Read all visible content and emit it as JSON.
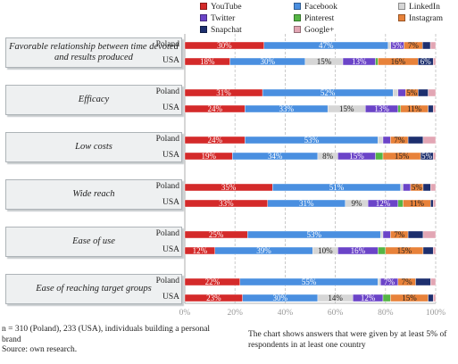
{
  "legend": [
    {
      "name": "YouTube",
      "color": "#d42a2a"
    },
    {
      "name": "Facebook",
      "color": "#4a8fe0"
    },
    {
      "name": "LinkedIn",
      "color": "#d6d6d6"
    },
    {
      "name": "Twitter",
      "color": "#6b44c8"
    },
    {
      "name": "Pinterest",
      "color": "#55b545"
    },
    {
      "name": "Instagram",
      "color": "#e8823a"
    },
    {
      "name": "Snapchat",
      "color": "#1d2f6e"
    },
    {
      "name": "Google+",
      "color": "#e2a6b4"
    }
  ],
  "chart_data": {
    "type": "bar",
    "orientation": "horizontal",
    "stacked": "percent",
    "xlim": [
      0,
      100
    ],
    "x_ticks": [
      "0%",
      "20%",
      "40%",
      "60%",
      "80%",
      "100%"
    ],
    "grid": "vertical dashed",
    "legend_position": "top-right",
    "groups": [
      {
        "category": "Favorable relationship between time devoted and results produced",
        "rows": [
          {
            "country": "Poland",
            "values": [
              30,
              47,
              1,
              5,
              0,
              7,
              3,
              2
            ]
          },
          {
            "country": "USA",
            "values": [
              18,
              30,
              15,
              13,
              1,
              16,
              6,
              1
            ]
          }
        ]
      },
      {
        "category": "Efficacy",
        "rows": [
          {
            "country": "Poland",
            "values": [
              31,
              52,
              2,
              3,
              0,
              5,
              4,
              3
            ]
          },
          {
            "country": "USA",
            "values": [
              24,
              33,
              15,
              13,
              1,
              11,
              2,
              1
            ]
          }
        ]
      },
      {
        "category": "Low costs",
        "rows": [
          {
            "country": "Poland",
            "values": [
              24,
              53,
              2,
              3,
              0,
              7,
              6,
              5
            ]
          },
          {
            "country": "USA",
            "values": [
              19,
              34,
              8,
              15,
              3,
              15,
              5,
              1
            ]
          }
        ]
      },
      {
        "category": "Wide reach",
        "rows": [
          {
            "country": "Poland",
            "values": [
              35,
              51,
              1,
              3,
              0,
              5,
              3,
              2
            ]
          },
          {
            "country": "USA",
            "values": [
              33,
              31,
              9,
              12,
              2,
              11,
              1,
              1
            ]
          }
        ]
      },
      {
        "category": "Ease of use",
        "rows": [
          {
            "country": "Poland",
            "values": [
              25,
              53,
              1,
              3,
              0,
              7,
              6,
              5
            ]
          },
          {
            "country": "USA",
            "values": [
              12,
              39,
              10,
              16,
              3,
              15,
              4,
              1
            ]
          }
        ]
      },
      {
        "category": "Ease of reaching target groups",
        "rows": [
          {
            "country": "Poland",
            "values": [
              22,
              55,
              1,
              7,
              0,
              7,
              6,
              2
            ]
          },
          {
            "country": "USA",
            "values": [
              23,
              30,
              14,
              12,
              3,
              15,
              2,
              1
            ]
          }
        ]
      }
    ],
    "labels": {
      "0-0": [
        "30%",
        "47%",
        "",
        "5%",
        "",
        "7%",
        "",
        ""
      ],
      "0-1": [
        "18%",
        "30%",
        "15%",
        "13%",
        "",
        "16%",
        "6%",
        ""
      ],
      "1-0": [
        "31%",
        "52%",
        "",
        "",
        "",
        "5%",
        "",
        ""
      ],
      "1-1": [
        "24%",
        "33%",
        "15%",
        "13%",
        "",
        "11%",
        "",
        ""
      ],
      "2-0": [
        "24%",
        "53%",
        "",
        "",
        "",
        "7%",
        "",
        ""
      ],
      "2-1": [
        "19%",
        "34%",
        "8%",
        "15%",
        "",
        "15%",
        "5%",
        ""
      ],
      "3-0": [
        "35%",
        "51%",
        "",
        "",
        "",
        "5%",
        "",
        ""
      ],
      "3-1": [
        "33%",
        "31%",
        "9%",
        "12%",
        "",
        "11%",
        "",
        ""
      ],
      "4-0": [
        "25%",
        "53%",
        "",
        "",
        "",
        "7%",
        "",
        ""
      ],
      "4-1": [
        "12%",
        "39%",
        "10%",
        "16%",
        "",
        "15%",
        "",
        ""
      ],
      "5-0": [
        "22%",
        "55%",
        "",
        "7%",
        "",
        "7%",
        "",
        ""
      ],
      "5-1": [
        "23%",
        "30%",
        "14%",
        "12%",
        "",
        "15%",
        "",
        ""
      ]
    }
  },
  "footer": {
    "note_left_line1": "n = 310 (Poland), 233 (USA), individuals building a personal",
    "note_left_line2": "brand",
    "source": "Source: own research.",
    "note_right_line1": "The chart shows  answers that were given by at least 5% of",
    "note_right_line2": "respondents in at least one country"
  }
}
